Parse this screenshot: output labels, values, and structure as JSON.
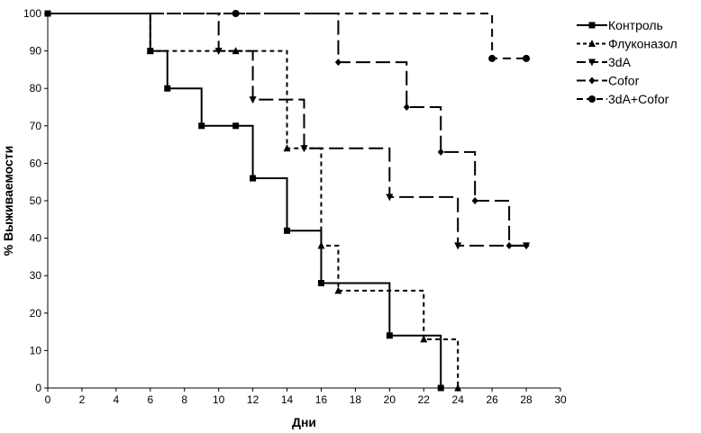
{
  "chart_data": {
    "type": "line",
    "title": "",
    "xlabel": "Дни",
    "ylabel": "% Выживаемости",
    "xlim": [
      0,
      30
    ],
    "ylim": [
      0,
      100
    ],
    "x_ticks": [
      0,
      2,
      4,
      6,
      8,
      10,
      12,
      14,
      16,
      18,
      20,
      22,
      24,
      26,
      28,
      30
    ],
    "y_ticks": [
      0,
      10,
      20,
      30,
      40,
      50,
      60,
      70,
      80,
      90,
      100
    ],
    "grid": false,
    "legend_position": "top-right",
    "series": [
      {
        "name": "Контроль",
        "line_style": "solid",
        "marker": "square",
        "color": "#000000",
        "points": [
          [
            0,
            100
          ],
          [
            6,
            90
          ],
          [
            7,
            80
          ],
          [
            9,
            70
          ],
          [
            11,
            70
          ],
          [
            12,
            56
          ],
          [
            14,
            42
          ],
          [
            16,
            28
          ],
          [
            20,
            14
          ],
          [
            23,
            0
          ]
        ]
      },
      {
        "name": "Флуконазол",
        "line_style": "short-dash",
        "marker": "triangle-up",
        "color": "#000000",
        "points": [
          [
            0,
            100
          ],
          [
            6,
            90
          ],
          [
            11,
            90
          ],
          [
            14,
            64
          ],
          [
            16,
            38
          ],
          [
            17,
            26
          ],
          [
            22,
            13
          ],
          [
            24,
            0
          ]
        ]
      },
      {
        "name": "3dA",
        "line_style": "long-dash",
        "marker": "triangle-down",
        "color": "#000000",
        "points": [
          [
            0,
            100
          ],
          [
            10,
            90
          ],
          [
            12,
            77
          ],
          [
            15,
            64
          ],
          [
            20,
            51
          ],
          [
            24,
            38
          ],
          [
            28,
            38
          ]
        ]
      },
      {
        "name": "Cofor",
        "line_style": "long-dash",
        "marker": "diamond",
        "color": "#000000",
        "points": [
          [
            0,
            100
          ],
          [
            17,
            87
          ],
          [
            21,
            75
          ],
          [
            23,
            63
          ],
          [
            25,
            50
          ],
          [
            27,
            38
          ],
          [
            28,
            38
          ]
        ]
      },
      {
        "name": "3dA+Cofor",
        "line_style": "medium-dash",
        "marker": "circle",
        "color": "#000000",
        "points": [
          [
            0,
            100
          ],
          [
            11,
            100
          ],
          [
            26,
            88
          ],
          [
            28,
            88
          ]
        ]
      }
    ]
  }
}
